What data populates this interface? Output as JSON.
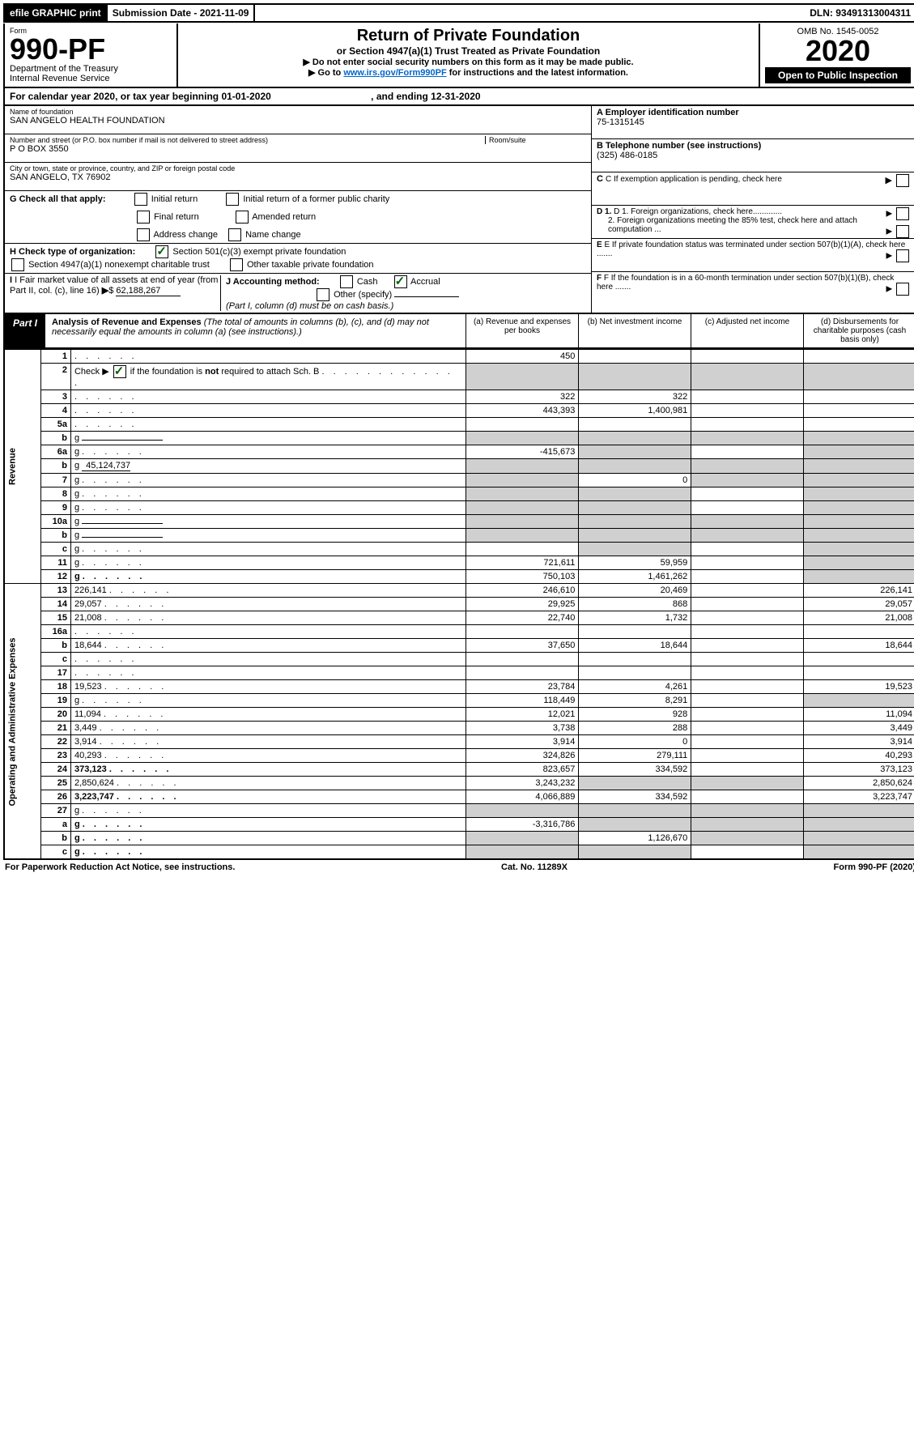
{
  "topbar": {
    "efile": "efile GRAPHIC print",
    "submission_label": "Submission Date - 2021-11-09",
    "dln_label": "DLN: 93491313004311"
  },
  "header": {
    "form_label": "Form",
    "form_number": "990-PF",
    "dept": "Department of the Treasury",
    "irs": "Internal Revenue Service",
    "title": "Return of Private Foundation",
    "subtitle": "or Section 4947(a)(1) Trust Treated as Private Foundation",
    "instr1": "▶ Do not enter social security numbers on this form as it may be made public.",
    "instr2_prefix": "▶ Go to ",
    "instr2_link": "www.irs.gov/Form990PF",
    "instr2_suffix": " for instructions and the latest information.",
    "omb": "OMB No. 1545-0052",
    "year": "2020",
    "open_public": "Open to Public Inspection"
  },
  "calendar": {
    "text_a": "For calendar year 2020, or tax year beginning 01-01-2020",
    "text_b": ", and ending 12-31-2020"
  },
  "entity": {
    "name_label": "Name of foundation",
    "name": "SAN ANGELO HEALTH FOUNDATION",
    "addr_label": "Number and street (or P.O. box number if mail is not delivered to street address)",
    "addr": "P O BOX 3550",
    "room_label": "Room/suite",
    "city_label": "City or town, state or province, country, and ZIP or foreign postal code",
    "city": "SAN ANGELO, TX  76902",
    "ein_label": "A Employer identification number",
    "ein": "75-1315145",
    "phone_label": "B Telephone number (see instructions)",
    "phone": "(325) 486-0185",
    "c_label": "C If exemption application is pending, check here",
    "d1_label": "D 1. Foreign organizations, check here.............",
    "d2_label": "2. Foreign organizations meeting the 85% test, check here and attach computation ...",
    "e_label": "E  If private foundation status was terminated under section 507(b)(1)(A), check here .......",
    "f_label": "F  If the foundation is in a 60-month termination under section 507(b)(1)(B), check here .......",
    "g_label": "G Check all that apply:",
    "g_opts": [
      "Initial return",
      "Initial return of a former public charity",
      "Final return",
      "Amended return",
      "Address change",
      "Name change"
    ],
    "h_label": "H Check type of organization:",
    "h_opts": [
      "Section 501(c)(3) exempt private foundation",
      "Section 4947(a)(1) nonexempt charitable trust",
      "Other taxable private foundation"
    ],
    "i_label": "I Fair market value of all assets at end of year (from Part II, col. (c), line 16)",
    "i_value": "62,188,267",
    "j_label": "J Accounting method:",
    "j_opts": [
      "Cash",
      "Accrual"
    ],
    "j_other": "Other (specify)",
    "j_note": "(Part I, column (d) must be on cash basis.)"
  },
  "part1": {
    "label": "Part I",
    "title": "Analysis of Revenue and Expenses",
    "title_note": "(The total of amounts in columns (b), (c), and (d) may not necessarily equal the amounts in column (a) (see instructions).)",
    "col_a": "(a)   Revenue and expenses per books",
    "col_b": "(b)   Net investment income",
    "col_c": "(c)   Adjusted net income",
    "col_d": "(d)   Disbursements for charitable purposes (cash basis only)",
    "revenue_label": "Revenue",
    "expenses_label": "Operating and Administrative Expenses"
  },
  "rows": [
    {
      "n": "1",
      "d": "",
      "a": "450",
      "b": "",
      "c": ""
    },
    {
      "n": "2",
      "d": "g",
      "a": "g",
      "b": "g",
      "c": "g"
    },
    {
      "n": "3",
      "d": "",
      "a": "322",
      "b": "322",
      "c": ""
    },
    {
      "n": "4",
      "d": "",
      "a": "443,393",
      "b": "1,400,981",
      "c": ""
    },
    {
      "n": "5a",
      "d": "",
      "a": "",
      "b": "",
      "c": ""
    },
    {
      "n": "b",
      "d": "g",
      "a": "g",
      "b": "g",
      "c": "g",
      "inline": true
    },
    {
      "n": "6a",
      "d": "g",
      "a": "-415,673",
      "b": "g",
      "c": ""
    },
    {
      "n": "b",
      "d": "g",
      "inline_val": "45,124,737",
      "a": "g",
      "b": "g",
      "c": "g"
    },
    {
      "n": "7",
      "d": "g",
      "a": "g",
      "b": "0",
      "c": "g"
    },
    {
      "n": "8",
      "d": "g",
      "a": "g",
      "b": "g",
      "c": ""
    },
    {
      "n": "9",
      "d": "g",
      "a": "g",
      "b": "g",
      "c": ""
    },
    {
      "n": "10a",
      "d": "g",
      "a": "g",
      "b": "g",
      "c": "g",
      "inline": true
    },
    {
      "n": "b",
      "d": "g",
      "a": "g",
      "b": "g",
      "c": "g",
      "inline": true
    },
    {
      "n": "c",
      "d": "g",
      "a": "",
      "b": "g",
      "c": ""
    },
    {
      "n": "11",
      "d": "g",
      "a": "721,611",
      "b": "59,959",
      "c": ""
    },
    {
      "n": "12",
      "d": "g",
      "a": "750,103",
      "b": "1,461,262",
      "c": "",
      "bold": true
    },
    {
      "n": "13",
      "d": "226,141",
      "a": "246,610",
      "b": "20,469",
      "c": ""
    },
    {
      "n": "14",
      "d": "29,057",
      "a": "29,925",
      "b": "868",
      "c": ""
    },
    {
      "n": "15",
      "d": "21,008",
      "a": "22,740",
      "b": "1,732",
      "c": ""
    },
    {
      "n": "16a",
      "d": "",
      "a": "",
      "b": "",
      "c": ""
    },
    {
      "n": "b",
      "d": "18,644",
      "a": "37,650",
      "b": "18,644",
      "c": ""
    },
    {
      "n": "c",
      "d": "",
      "a": "",
      "b": "",
      "c": ""
    },
    {
      "n": "17",
      "d": "",
      "a": "",
      "b": "",
      "c": ""
    },
    {
      "n": "18",
      "d": "19,523",
      "a": "23,784",
      "b": "4,261",
      "c": ""
    },
    {
      "n": "19",
      "d": "g",
      "a": "118,449",
      "b": "8,291",
      "c": ""
    },
    {
      "n": "20",
      "d": "11,094",
      "a": "12,021",
      "b": "928",
      "c": ""
    },
    {
      "n": "21",
      "d": "3,449",
      "a": "3,738",
      "b": "288",
      "c": ""
    },
    {
      "n": "22",
      "d": "3,914",
      "a": "3,914",
      "b": "0",
      "c": ""
    },
    {
      "n": "23",
      "d": "40,293",
      "a": "324,826",
      "b": "279,111",
      "c": ""
    },
    {
      "n": "24",
      "d": "373,123",
      "a": "823,657",
      "b": "334,592",
      "c": "",
      "bold": true
    },
    {
      "n": "25",
      "d": "2,850,624",
      "a": "3,243,232",
      "b": "g",
      "c": "g"
    },
    {
      "n": "26",
      "d": "3,223,747",
      "a": "4,066,889",
      "b": "334,592",
      "c": "",
      "bold": true
    },
    {
      "n": "27",
      "d": "g",
      "a": "g",
      "b": "g",
      "c": "g"
    },
    {
      "n": "a",
      "d": "g",
      "a": "-3,316,786",
      "b": "g",
      "c": "g",
      "bold": true
    },
    {
      "n": "b",
      "d": "g",
      "a": "g",
      "b": "1,126,670",
      "c": "g",
      "bold": true
    },
    {
      "n": "c",
      "d": "g",
      "a": "g",
      "b": "g",
      "c": "",
      "bold": true
    }
  ],
  "footer": {
    "left": "For Paperwork Reduction Act Notice, see instructions.",
    "center": "Cat. No. 11289X",
    "right": "Form 990-PF (2020)"
  }
}
